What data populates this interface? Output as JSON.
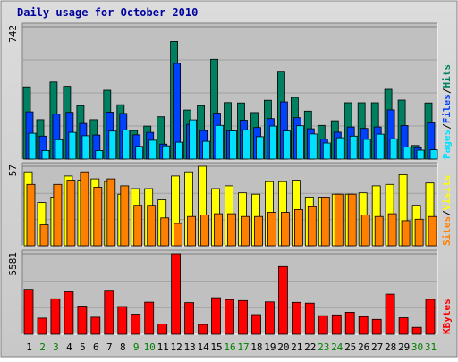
{
  "chart_data": {
    "type": "bar",
    "title": "Daily usage for October 2010",
    "categories": [
      "1",
      "2",
      "3",
      "4",
      "5",
      "6",
      "7",
      "8",
      "9",
      "10",
      "11",
      "12",
      "13",
      "14",
      "15",
      "16",
      "17",
      "18",
      "19",
      "20",
      "21",
      "22",
      "23",
      "24",
      "25",
      "26",
      "27",
      "28",
      "29",
      "30",
      "31"
    ],
    "weekend_days": [
      "2",
      "3",
      "9",
      "10",
      "16",
      "17",
      "23",
      "24",
      "30",
      "31"
    ],
    "colors": {
      "hits": "#008060",
      "files": "#0040ff",
      "pages": "#00e0ff",
      "visits": "#ffff00",
      "sites": "#ff8000",
      "kbytes": "#ff0000",
      "weekday_label": "#000000",
      "weekend_label": "#008000",
      "title": "#0000a0",
      "panel_bg": "#c0c0c0",
      "frame_bg": "#d4d4d4"
    },
    "panels": [
      {
        "name": "hits-files-pages",
        "axis_max_label": "742",
        "ylim": [
          0,
          742
        ],
        "legend": [
          {
            "text": "Pages",
            "color": "#00e0ff"
          },
          {
            "text": "/",
            "color": "#000000"
          },
          {
            "text": "Files",
            "color": "#0040ff"
          },
          {
            "text": "/",
            "color": "#000000"
          },
          {
            "text": "Hits",
            "color": "#008060"
          }
        ],
        "series": [
          {
            "name": "Hits",
            "values": [
              405,
              221,
              432,
              408,
              300,
              221,
              386,
              305,
              160,
              185,
              237,
              660,
              275,
              300,
              560,
              317,
              315,
              261,
              330,
              493,
              346,
              269,
              189,
              215,
              316,
              316,
              316,
              391,
              331,
              76,
              315
            ]
          },
          {
            "name": "Files",
            "values": [
              265,
              129,
              252,
              262,
              200,
              135,
              263,
              256,
              136,
              150,
              84,
              537,
              195,
              160,
              258,
              160,
              218,
              177,
              227,
              321,
              232,
              170,
              112,
              151,
              180,
              172,
              180,
              276,
              188,
              64,
              203
            ]
          },
          {
            "name": "Pages",
            "values": [
              145,
              48,
              109,
              150,
              131,
              48,
              157,
              163,
              71,
              106,
              74,
              95,
              220,
              100,
              189,
              158,
              164,
              126,
              185,
              158,
              187,
              141,
              90,
              120,
              129,
              111,
              140,
              114,
              67,
              50,
              52
            ]
          }
        ]
      },
      {
        "name": "visits-sites",
        "axis_max_label": "57",
        "ylim": [
          0,
          57
        ],
        "legend": [
          {
            "text": "Sites",
            "color": "#ff8000"
          },
          {
            "text": "/",
            "color": "#000000"
          },
          {
            "text": "Visits",
            "color": "#ffff00"
          }
        ],
        "series": [
          {
            "name": "Visits",
            "values": [
              53,
              31,
              35,
              50,
              47,
              48,
              46,
              37,
              41,
              41,
              33,
              50,
              53,
              57,
              41,
              43,
              38,
              37,
              46,
              46,
              47,
              35,
              35,
              37,
              37,
              38,
              43,
              44,
              51,
              29,
              45
            ]
          },
          {
            "name": "Sites",
            "values": [
              44,
              15,
              44,
              47,
              53,
              42,
              48,
              43,
              29,
              29,
              20,
              16,
              21,
              22,
              23,
              23,
              21,
              21,
              24,
              24,
              26,
              28,
              35,
              37,
              37,
              22,
              21,
              23,
              18,
              19,
              21
            ]
          }
        ]
      },
      {
        "name": "kbytes",
        "axis_max_label": "5581",
        "ylim": [
          0,
          5581
        ],
        "legend": [
          {
            "text": "KBytes",
            "color": "#ff0000"
          }
        ],
        "series": [
          {
            "name": "KBytes",
            "values": [
              3122,
              1121,
              2461,
              2947,
              1952,
              1183,
              2995,
              1924,
              1395,
              2224,
              713,
              5581,
              2193,
              681,
              2539,
              2406,
              2338,
              1363,
              2242,
              4697,
              2211,
              2155,
              1287,
              1343,
              1523,
              1219,
              1033,
              2783,
              1149,
              485,
              2425
            ]
          }
        ]
      }
    ]
  }
}
